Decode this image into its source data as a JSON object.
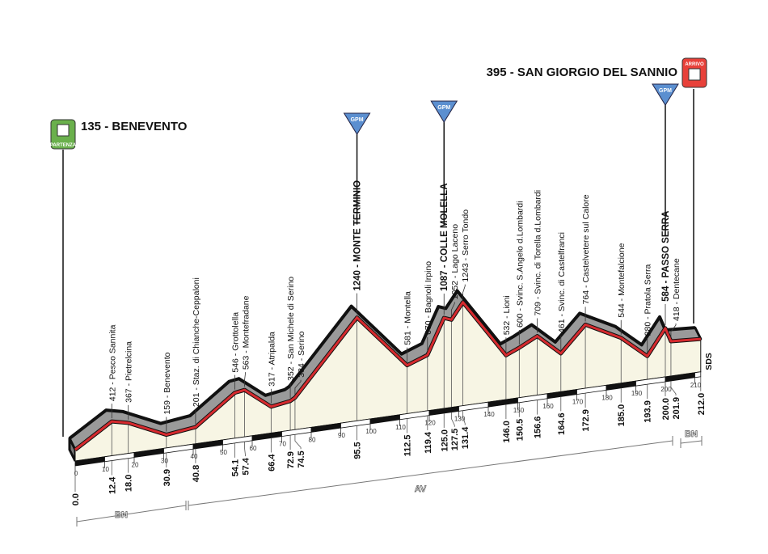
{
  "start": {
    "label": "135 - BENEVENTO",
    "icon": "partenza-flag-icon",
    "badge": "PARTENZA",
    "color": "#6ab04c"
  },
  "finish": {
    "label": "395 - SAN GIORGIO DEL SANNIO",
    "icon": "arrivo-finish-icon",
    "badge": "ARRIVO",
    "color": "#e8413a"
  },
  "gpm_label": "GPM",
  "gpm_color": "#5b8fd0",
  "end_road": "SDS",
  "provinces": [
    {
      "label": "BN",
      "from_km": 0,
      "to_km": 40.8
    },
    {
      "label": "AV",
      "from_km": 40.8,
      "to_km": 205
    },
    {
      "label": "BN",
      "from_km": 205,
      "to_km": 212
    }
  ],
  "chart_data": {
    "type": "area",
    "xlabel": "",
    "ylabel": "",
    "xlim": [
      0,
      212
    ],
    "x_ticks": [
      0,
      10,
      20,
      30,
      40,
      50,
      60,
      70,
      80,
      90,
      100,
      110,
      120,
      130,
      140,
      150,
      160,
      170,
      180,
      190,
      200,
      210
    ],
    "colors": {
      "line": "#d62a2e",
      "fill": "#f7f5e4",
      "relief": "#9a9a9a"
    },
    "points": [
      {
        "km": "0.0",
        "ele": 135,
        "label": ""
      },
      {
        "km": "12.4",
        "ele": 412,
        "label": "412 - Pesco Sannita"
      },
      {
        "km": "18.0",
        "ele": 367,
        "label": "367 - Pietrelcina"
      },
      {
        "km": "30.9",
        "ele": 159,
        "label": "159 - Benevento"
      },
      {
        "km": "40.8",
        "ele": 201,
        "label": "201 - Staz. di Chianche-Ceppaloni"
      },
      {
        "km": "54.1",
        "ele": 546,
        "label": "546 - Grottolella"
      },
      {
        "km": "57.4",
        "ele": 563,
        "label": "563 - Montefradane"
      },
      {
        "km": "66.4",
        "ele": 317,
        "label": "317 - Atripalda"
      },
      {
        "km": "72.9",
        "ele": 352,
        "label": "352 - San Michele di Serino"
      },
      {
        "km": "74.5",
        "ele": 384,
        "label": "384 - Serino"
      },
      {
        "km": "95.5",
        "ele": 1240,
        "label": "1240 - MONTE TERMINIO",
        "gpm": true
      },
      {
        "km": "112.5",
        "ele": 581,
        "label": "581 - Montella"
      },
      {
        "km": "119.4",
        "ele": 670,
        "label": "670 - Bagnoli Irpino"
      },
      {
        "km": "125.0",
        "ele": 1087,
        "label": "1087 - COLLE MOLELLA",
        "gpm": true
      },
      {
        "km": "127.5",
        "ele": 1052,
        "label": "1052 - Lago Laceno"
      },
      {
        "km": "131.4",
        "ele": 1243,
        "label": "1243 - Serro Tondo"
      },
      {
        "km": "146.0",
        "ele": 532,
        "label": "532 - Lioni"
      },
      {
        "km": "150.5",
        "ele": 600,
        "label": "600 - Svinc. S.Angelo d.Lombardi"
      },
      {
        "km": "156.6",
        "ele": 709,
        "label": "709 - Svinc. di Torella d.Lombardi"
      },
      {
        "km": "164.6",
        "ele": 461,
        "label": "461 - Svinc. di Castelfranci"
      },
      {
        "km": "172.9",
        "ele": 764,
        "label": "764 - Castelvetere sul Calore"
      },
      {
        "km": "185.0",
        "ele": 544,
        "label": "544 - Montefalcione"
      },
      {
        "km": "193.9",
        "ele": 280,
        "label": "280 - Pratola Serra"
      },
      {
        "km": "200.0",
        "ele": 584,
        "label": "584 - PASSO SERRA",
        "gpm": true
      },
      {
        "km": "201.9",
        "ele": 418,
        "label": "418 - Dentecane"
      },
      {
        "km": "212.0",
        "ele": 395,
        "label": ""
      }
    ]
  }
}
